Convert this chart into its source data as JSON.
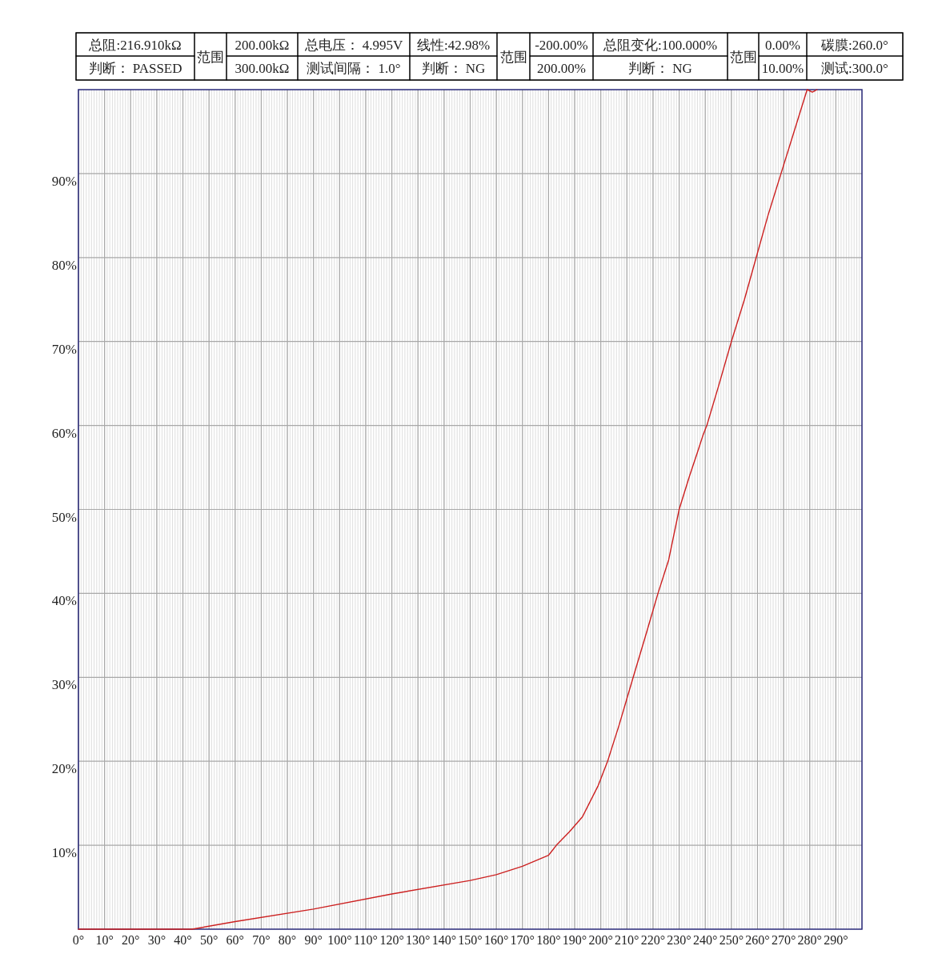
{
  "chart_data": {
    "type": "line",
    "annotations": [
      "总阻:216.910kΩ",
      "范围",
      "200.00kΩ",
      "总电压： 4.995V",
      "线性:42.98%",
      "范围",
      "-200.00%",
      "总阻变化:100.000%",
      "范围",
      "0.00%",
      "碳膜:260.0°",
      "判断： PASSED",
      "300.00kΩ",
      "测试间隔： 1.0°",
      "判断： NG",
      "200.00%",
      "判断： NG",
      "10.00%",
      "测试:300.0°"
    ],
    "x": [
      0,
      43.5,
      60,
      90,
      120,
      150,
      160,
      170,
      180,
      181,
      183,
      188,
      193,
      199,
      202.6,
      207,
      212.4,
      217,
      221.9,
      226,
      230,
      234,
      237,
      239.2,
      240.6,
      245,
      250,
      255,
      259.5,
      264,
      269,
      274,
      279,
      281,
      282.8
    ],
    "series": [
      {
        "color": "#cc2020",
        "values": [
          0,
          0,
          0.9,
          2.4,
          4.2,
          5.8,
          6.5,
          7.5,
          8.8,
          9.2,
          10,
          11.6,
          13.4,
          17.1,
          20,
          24.3,
          30,
          34.8,
          40,
          44,
          50,
          54,
          56.8,
          58.9,
          60,
          64.6,
          70,
          75,
          80,
          85,
          90,
          95,
          100,
          99.7,
          100
        ]
      }
    ],
    "xlim": [
      0,
      300
    ],
    "xticks": [
      {
        "value": 0,
        "label": "0°"
      },
      {
        "value": 10,
        "label": "10°"
      },
      {
        "value": 20,
        "label": "20°"
      },
      {
        "value": 30,
        "label": "30°"
      },
      {
        "value": 40,
        "label": "40°"
      },
      {
        "value": 50,
        "label": "50°"
      },
      {
        "value": 60,
        "label": "60°"
      },
      {
        "value": 70,
        "label": "70°"
      },
      {
        "value": 80,
        "label": "80°"
      },
      {
        "value": 90,
        "label": "90°"
      },
      {
        "value": 100,
        "label": "100°"
      },
      {
        "value": 110,
        "label": "110°"
      },
      {
        "value": 120,
        "label": "120°"
      },
      {
        "value": 130,
        "label": "130°"
      },
      {
        "value": 140,
        "label": "140°"
      },
      {
        "value": 150,
        "label": "150°"
      },
      {
        "value": 160,
        "label": "160°"
      },
      {
        "value": 170,
        "label": "170°"
      },
      {
        "value": 180,
        "label": "180°"
      },
      {
        "value": 190,
        "label": "190°"
      },
      {
        "value": 200,
        "label": "200°"
      },
      {
        "value": 210,
        "label": "210°"
      },
      {
        "value": 220,
        "label": "220°"
      },
      {
        "value": 230,
        "label": "230°"
      },
      {
        "value": 240,
        "label": "240°"
      },
      {
        "value": 250,
        "label": "250°"
      },
      {
        "value": 260,
        "label": "260°"
      },
      {
        "value": 270,
        "label": "270°"
      },
      {
        "value": 280,
        "label": "280°"
      },
      {
        "value": 290,
        "label": "290°"
      }
    ],
    "ylim": [
      0,
      100
    ],
    "yticks": [
      {
        "value": 10,
        "label": "10%"
      },
      {
        "value": 20,
        "label": "20%"
      },
      {
        "value": 30,
        "label": "30%"
      },
      {
        "value": 40,
        "label": "40%"
      },
      {
        "value": 50,
        "label": "50%"
      },
      {
        "value": 60,
        "label": "60%"
      },
      {
        "value": 70,
        "label": "70%"
      },
      {
        "value": 80,
        "label": "80%"
      },
      {
        "value": 90,
        "label": "90%"
      }
    ],
    "grid": true,
    "marker": "none",
    "line_style": "solid"
  }
}
